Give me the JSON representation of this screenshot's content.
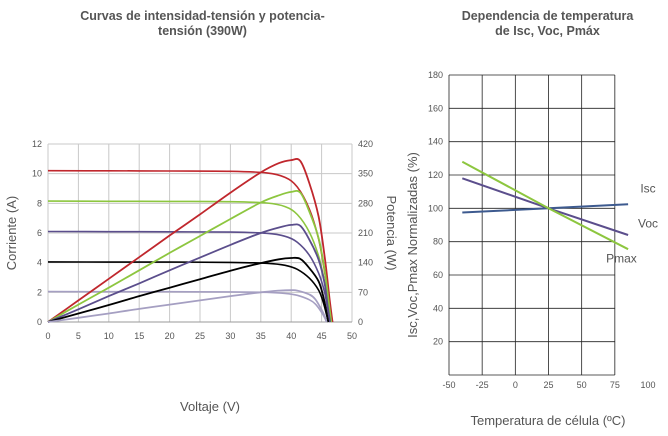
{
  "chart_data": [
    {
      "type": "line",
      "title": "Curvas de intensidad-tensión y potencia-tensión (390W)",
      "xlabel": "Voltaje (V)",
      "ylabel": "Corriente (A)",
      "y2label": "Potencia (W)",
      "xlim": [
        0,
        50
      ],
      "ylim": [
        0,
        12
      ],
      "y2lim": [
        0,
        420
      ],
      "xticks": [
        "0",
        "5",
        "10",
        "15",
        "20",
        "25",
        "30",
        "35",
        "40",
        "45",
        "50"
      ],
      "yticks": [
        "0",
        "2",
        "4",
        "6",
        "8",
        "10",
        "12"
      ],
      "y2ticks": [
        "0",
        "70",
        "140",
        "210",
        "280",
        "350",
        "420"
      ],
      "grid": true,
      "colors": [
        "#c0272d",
        "#8dc63f",
        "#5b4e8c",
        "#000000",
        "#a59fc2"
      ],
      "current_series": [
        {
          "color": "#c0272d",
          "x": [
            0,
            10,
            20,
            30,
            36,
            39,
            41,
            43,
            44.5,
            45.5,
            46.3,
            46.8
          ],
          "y": [
            10.2,
            10.19,
            10.18,
            10.16,
            10.05,
            9.75,
            9.1,
            7.6,
            5.6,
            3.4,
            1.2,
            0
          ]
        },
        {
          "color": "#8dc63f",
          "x": [
            0,
            10,
            20,
            30,
            36,
            39,
            41,
            43,
            44.5,
            45.5,
            46.2,
            46.6
          ],
          "y": [
            8.15,
            8.14,
            8.13,
            8.11,
            8.02,
            7.78,
            7.25,
            6.05,
            4.45,
            2.7,
            0.95,
            0
          ]
        },
        {
          "color": "#5b4e8c",
          "x": [
            0,
            10,
            20,
            30,
            36,
            39,
            41,
            43,
            44.5,
            45.5,
            46,
            46.4
          ],
          "y": [
            6.1,
            6.09,
            6.08,
            6.06,
            5.98,
            5.78,
            5.38,
            4.5,
            3.3,
            2.0,
            0.8,
            0
          ]
        },
        {
          "color": "#000000",
          "x": [
            0,
            10,
            20,
            30,
            36,
            39,
            41,
            43,
            44.5,
            45.3,
            45.8,
            46.1
          ],
          "y": [
            4.05,
            4.04,
            4.04,
            4.02,
            3.96,
            3.82,
            3.55,
            2.95,
            2.15,
            1.3,
            0.5,
            0
          ]
        },
        {
          "color": "#a59fc2",
          "x": [
            0,
            10,
            20,
            30,
            36,
            39,
            41,
            43,
            44,
            45,
            45.5,
            45.8
          ],
          "y": [
            2.05,
            2.04,
            2.04,
            2.03,
            2.0,
            1.93,
            1.8,
            1.5,
            1.2,
            0.65,
            0.3,
            0
          ]
        }
      ],
      "power_series": [
        {
          "color": "#c0272d",
          "x": [
            0,
            5,
            10,
            15,
            20,
            25,
            30,
            35,
            38,
            40,
            41.5,
            43,
            44.5,
            45.5,
            46.3,
            46.8
          ],
          "y": [
            0,
            51,
            102,
            153,
            204,
            254,
            305,
            353,
            375,
            382,
            380,
            327,
            249,
            155,
            56,
            0
          ]
        },
        {
          "color": "#8dc63f",
          "x": [
            0,
            5,
            10,
            15,
            20,
            25,
            30,
            35,
            38,
            40,
            41.5,
            43,
            44.5,
            45.5,
            46.2,
            46.6
          ],
          "y": [
            0,
            41,
            81,
            122,
            163,
            203,
            243,
            282,
            299,
            307,
            305,
            260,
            198,
            123,
            44,
            0
          ]
        },
        {
          "color": "#5b4e8c",
          "x": [
            0,
            5,
            10,
            15,
            20,
            25,
            30,
            35,
            38,
            40,
            41.5,
            43,
            44.5,
            45.5,
            46,
            46.4
          ],
          "y": [
            0,
            30,
            61,
            91,
            122,
            152,
            182,
            210,
            223,
            229,
            227,
            194,
            147,
            91,
            37,
            0
          ]
        },
        {
          "color": "#000000",
          "x": [
            0,
            5,
            10,
            15,
            20,
            25,
            30,
            35,
            38,
            40,
            41.5,
            43,
            44.5,
            45.3,
            45.8,
            46.1
          ],
          "y": [
            0,
            20,
            40,
            61,
            81,
            101,
            121,
            139,
            148,
            151,
            149,
            127,
            96,
            59,
            23,
            0
          ]
        },
        {
          "color": "#a59fc2",
          "x": [
            0,
            5,
            10,
            15,
            20,
            25,
            30,
            35,
            38,
            40,
            41,
            43,
            44,
            45,
            45.5,
            45.8
          ],
          "y": [
            0,
            10,
            20,
            31,
            41,
            51,
            61,
            70,
            74,
            75,
            74,
            65,
            53,
            29,
            14,
            0
          ]
        }
      ]
    },
    {
      "type": "line",
      "title": "Dependencia de temperatura de Isc, Voc, Pmáx",
      "xlabel": "Temperatura de célula (ºC)",
      "ylabel": "Isc,Voc,Pmax Normalizadas (%)",
      "xlim": [
        -50,
        100
      ],
      "ylim": [
        0,
        180
      ],
      "xticks": [
        "-50",
        "-25",
        "0",
        "25",
        "50",
        "75",
        "100"
      ],
      "yticks": [
        "20",
        "40",
        "60",
        "80",
        "100",
        "120",
        "140",
        "160",
        "180"
      ],
      "grid": true,
      "series": [
        {
          "name": "Isc",
          "color": "#3d5a8f",
          "x": [
            -40,
            25,
            85
          ],
          "y": [
            97.5,
            100,
            102.5
          ]
        },
        {
          "name": "Voc",
          "color": "#5b4e8c",
          "x": [
            -40,
            25,
            85
          ],
          "y": [
            118,
            100,
            84
          ]
        },
        {
          "name": "Pmax",
          "color": "#8dc63f",
          "x": [
            -40,
            25,
            85
          ],
          "y": [
            128,
            100,
            75.5
          ]
        }
      ]
    }
  ]
}
